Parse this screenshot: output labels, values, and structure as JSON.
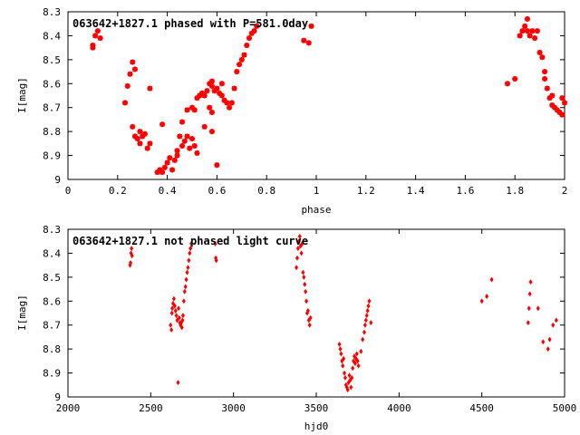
{
  "chart_data": [
    {
      "type": "scatter",
      "title": "063642+1827.1 phased with P=581.0day",
      "xlabel": "phase",
      "ylabel": "I[mag]",
      "xlim": [
        0,
        2
      ],
      "ylim": [
        9,
        8.3
      ],
      "y_inverted": true,
      "xticks": [
        "0",
        "0.2",
        "0.4",
        "0.6",
        "0.8",
        "1",
        "1.2",
        "1.4",
        "1.6",
        "1.8",
        "2"
      ],
      "yticks": [
        "8.3",
        "8.4",
        "8.5",
        "8.6",
        "8.7",
        "8.8",
        "8.9",
        "9"
      ],
      "grid": false,
      "marker_color": "#ff0000",
      "series": [
        {
          "points": [
            [
              0.1,
              8.45
            ],
            [
              0.1,
              8.44
            ],
            [
              0.11,
              8.4
            ],
            [
              0.12,
              8.38
            ],
            [
              0.13,
              8.41
            ],
            [
              0.23,
              8.68
            ],
            [
              0.24,
              8.61
            ],
            [
              0.25,
              8.56
            ],
            [
              0.26,
              8.51
            ],
            [
              0.27,
              8.54
            ],
            [
              0.26,
              8.78
            ],
            [
              0.27,
              8.82
            ],
            [
              0.28,
              8.83
            ],
            [
              0.29,
              8.85
            ],
            [
              0.29,
              8.8
            ],
            [
              0.3,
              8.82
            ],
            [
              0.31,
              8.81
            ],
            [
              0.32,
              8.87
            ],
            [
              0.33,
              8.85
            ],
            [
              0.33,
              8.62
            ],
            [
              0.36,
              8.97
            ],
            [
              0.37,
              8.96
            ],
            [
              0.38,
              8.97
            ],
            [
              0.38,
              8.77
            ],
            [
              0.39,
              8.95
            ],
            [
              0.4,
              8.93
            ],
            [
              0.41,
              8.91
            ],
            [
              0.42,
              8.96
            ],
            [
              0.43,
              8.92
            ],
            [
              0.44,
              8.9
            ],
            [
              0.44,
              8.88
            ],
            [
              0.45,
              8.82
            ],
            [
              0.46,
              8.76
            ],
            [
              0.46,
              8.86
            ],
            [
              0.47,
              8.84
            ],
            [
              0.48,
              8.82
            ],
            [
              0.49,
              8.87
            ],
            [
              0.5,
              8.83
            ],
            [
              0.51,
              8.86
            ],
            [
              0.52,
              8.89
            ],
            [
              0.48,
              8.71
            ],
            [
              0.5,
              8.7
            ],
            [
              0.51,
              8.71
            ],
            [
              0.52,
              8.66
            ],
            [
              0.53,
              8.65
            ],
            [
              0.54,
              8.64
            ],
            [
              0.55,
              8.65
            ],
            [
              0.56,
              8.63
            ],
            [
              0.57,
              8.6
            ],
            [
              0.58,
              8.59
            ],
            [
              0.58,
              8.61
            ],
            [
              0.59,
              8.63
            ],
            [
              0.6,
              8.62
            ],
            [
              0.61,
              8.64
            ],
            [
              0.62,
              8.65
            ],
            [
              0.62,
              8.6
            ],
            [
              0.63,
              8.67
            ],
            [
              0.64,
              8.68
            ],
            [
              0.65,
              8.7
            ],
            [
              0.57,
              8.7
            ],
            [
              0.58,
              8.72
            ],
            [
              0.55,
              8.78
            ],
            [
              0.58,
              8.8
            ],
            [
              0.6,
              8.94
            ],
            [
              0.66,
              8.68
            ],
            [
              0.67,
              8.62
            ],
            [
              0.68,
              8.55
            ],
            [
              0.69,
              8.52
            ],
            [
              0.7,
              8.5
            ],
            [
              0.71,
              8.48
            ],
            [
              0.72,
              8.44
            ],
            [
              0.73,
              8.41
            ],
            [
              0.74,
              8.39
            ],
            [
              0.75,
              8.38
            ],
            [
              0.76,
              8.36
            ],
            [
              0.95,
              8.42
            ],
            [
              0.97,
              8.43
            ],
            [
              0.98,
              8.36
            ],
            [
              1.77,
              8.6
            ],
            [
              1.8,
              8.58
            ],
            [
              1.82,
              8.4
            ],
            [
              1.83,
              8.38
            ],
            [
              1.84,
              8.36
            ],
            [
              1.85,
              8.33
            ],
            [
              1.85,
              8.38
            ],
            [
              1.86,
              8.4
            ],
            [
              1.87,
              8.38
            ],
            [
              1.88,
              8.41
            ],
            [
              1.89,
              8.38
            ],
            [
              1.9,
              8.47
            ],
            [
              1.91,
              8.49
            ],
            [
              1.92,
              8.55
            ],
            [
              1.92,
              8.58
            ],
            [
              1.93,
              8.62
            ],
            [
              1.94,
              8.66
            ],
            [
              1.95,
              8.65
            ],
            [
              1.95,
              8.69
            ],
            [
              1.96,
              8.7
            ],
            [
              1.97,
              8.71
            ],
            [
              1.98,
              8.72
            ],
            [
              1.99,
              8.73
            ],
            [
              2.0,
              8.68
            ],
            [
              1.99,
              8.66
            ]
          ]
        }
      ]
    },
    {
      "type": "scatter",
      "title": "063642+1827.1 not phased light curve",
      "xlabel": "hjd0",
      "ylabel": "I[mag]",
      "xlim": [
        2000,
        5000
      ],
      "ylim": [
        9,
        8.3
      ],
      "y_inverted": true,
      "xticks": [
        "2000",
        "2500",
        "3000",
        "3500",
        "4000",
        "4500",
        "5000"
      ],
      "yticks": [
        "8.3",
        "8.4",
        "8.5",
        "8.6",
        "8.7",
        "8.8",
        "8.9",
        "9"
      ],
      "grid": false,
      "marker_color": "#ff0000",
      "series": [
        {
          "points": [
            [
              2375,
              8.45
            ],
            [
              2378,
              8.44
            ],
            [
              2381,
              8.4
            ],
            [
              2384,
              8.38
            ],
            [
              2387,
              8.41
            ],
            [
              2620,
              8.7
            ],
            [
              2625,
              8.72
            ],
            [
              2628,
              8.65
            ],
            [
              2630,
              8.63
            ],
            [
              2635,
              8.61
            ],
            [
              2640,
              8.59
            ],
            [
              2645,
              8.62
            ],
            [
              2650,
              8.64
            ],
            [
              2655,
              8.66
            ],
            [
              2660,
              8.68
            ],
            [
              2665,
              8.94
            ],
            [
              2668,
              8.63
            ],
            [
              2672,
              8.67
            ],
            [
              2676,
              8.69
            ],
            [
              2680,
              8.7
            ],
            [
              2684,
              8.69
            ],
            [
              2688,
              8.71
            ],
            [
              2692,
              8.68
            ],
            [
              2695,
              8.66
            ],
            [
              2700,
              8.6
            ],
            [
              2705,
              8.56
            ],
            [
              2710,
              8.54
            ],
            [
              2715,
              8.51
            ],
            [
              2720,
              8.48
            ],
            [
              2725,
              8.46
            ],
            [
              2730,
              8.43
            ],
            [
              2735,
              8.4
            ],
            [
              2740,
              8.38
            ],
            [
              2745,
              8.36
            ],
            [
              2890,
              8.36
            ],
            [
              2893,
              8.42
            ],
            [
              2896,
              8.43
            ],
            [
              3380,
              8.46
            ],
            [
              3385,
              8.42
            ],
            [
              3390,
              8.38
            ],
            [
              3395,
              8.35
            ],
            [
              3400,
              8.33
            ],
            [
              3405,
              8.37
            ],
            [
              3410,
              8.4
            ],
            [
              3415,
              8.36
            ],
            [
              3420,
              8.48
            ],
            [
              3425,
              8.5
            ],
            [
              3430,
              8.53
            ],
            [
              3435,
              8.56
            ],
            [
              3440,
              8.6
            ],
            [
              3445,
              8.65
            ],
            [
              3450,
              8.64
            ],
            [
              3455,
              8.68
            ],
            [
              3460,
              8.7
            ],
            [
              3465,
              8.67
            ],
            [
              3640,
              8.78
            ],
            [
              3645,
              8.8
            ],
            [
              3650,
              8.82
            ],
            [
              3655,
              8.85
            ],
            [
              3660,
              8.87
            ],
            [
              3665,
              8.84
            ],
            [
              3670,
              8.9
            ],
            [
              3675,
              8.92
            ],
            [
              3680,
              8.95
            ],
            [
              3685,
              8.96
            ],
            [
              3690,
              8.97
            ],
            [
              3695,
              8.94
            ],
            [
              3700,
              8.91
            ],
            [
              3705,
              8.93
            ],
            [
              3710,
              8.96
            ],
            [
              3715,
              8.92
            ],
            [
              3720,
              8.88
            ],
            [
              3725,
              8.85
            ],
            [
              3730,
              8.83
            ],
            [
              3735,
              8.86
            ],
            [
              3740,
              8.84
            ],
            [
              3745,
              8.82
            ],
            [
              3750,
              8.85
            ],
            [
              3755,
              8.87
            ],
            [
              3770,
              8.81
            ],
            [
              3780,
              8.76
            ],
            [
              3790,
              8.73
            ],
            [
              3795,
              8.7
            ],
            [
              3800,
              8.68
            ],
            [
              3805,
              8.66
            ],
            [
              3810,
              8.64
            ],
            [
              3815,
              8.62
            ],
            [
              3820,
              8.6
            ],
            [
              3830,
              8.69
            ],
            [
              4500,
              8.6
            ],
            [
              4530,
              8.58
            ],
            [
              4560,
              8.51
            ],
            [
              4780,
              8.69
            ],
            [
              4785,
              8.63
            ],
            [
              4790,
              8.57
            ],
            [
              4795,
              8.52
            ],
            [
              4840,
              8.63
            ],
            [
              4870,
              8.77
            ],
            [
              4900,
              8.8
            ],
            [
              4910,
              8.76
            ],
            [
              4930,
              8.7
            ],
            [
              4950,
              8.68
            ]
          ]
        }
      ]
    }
  ]
}
